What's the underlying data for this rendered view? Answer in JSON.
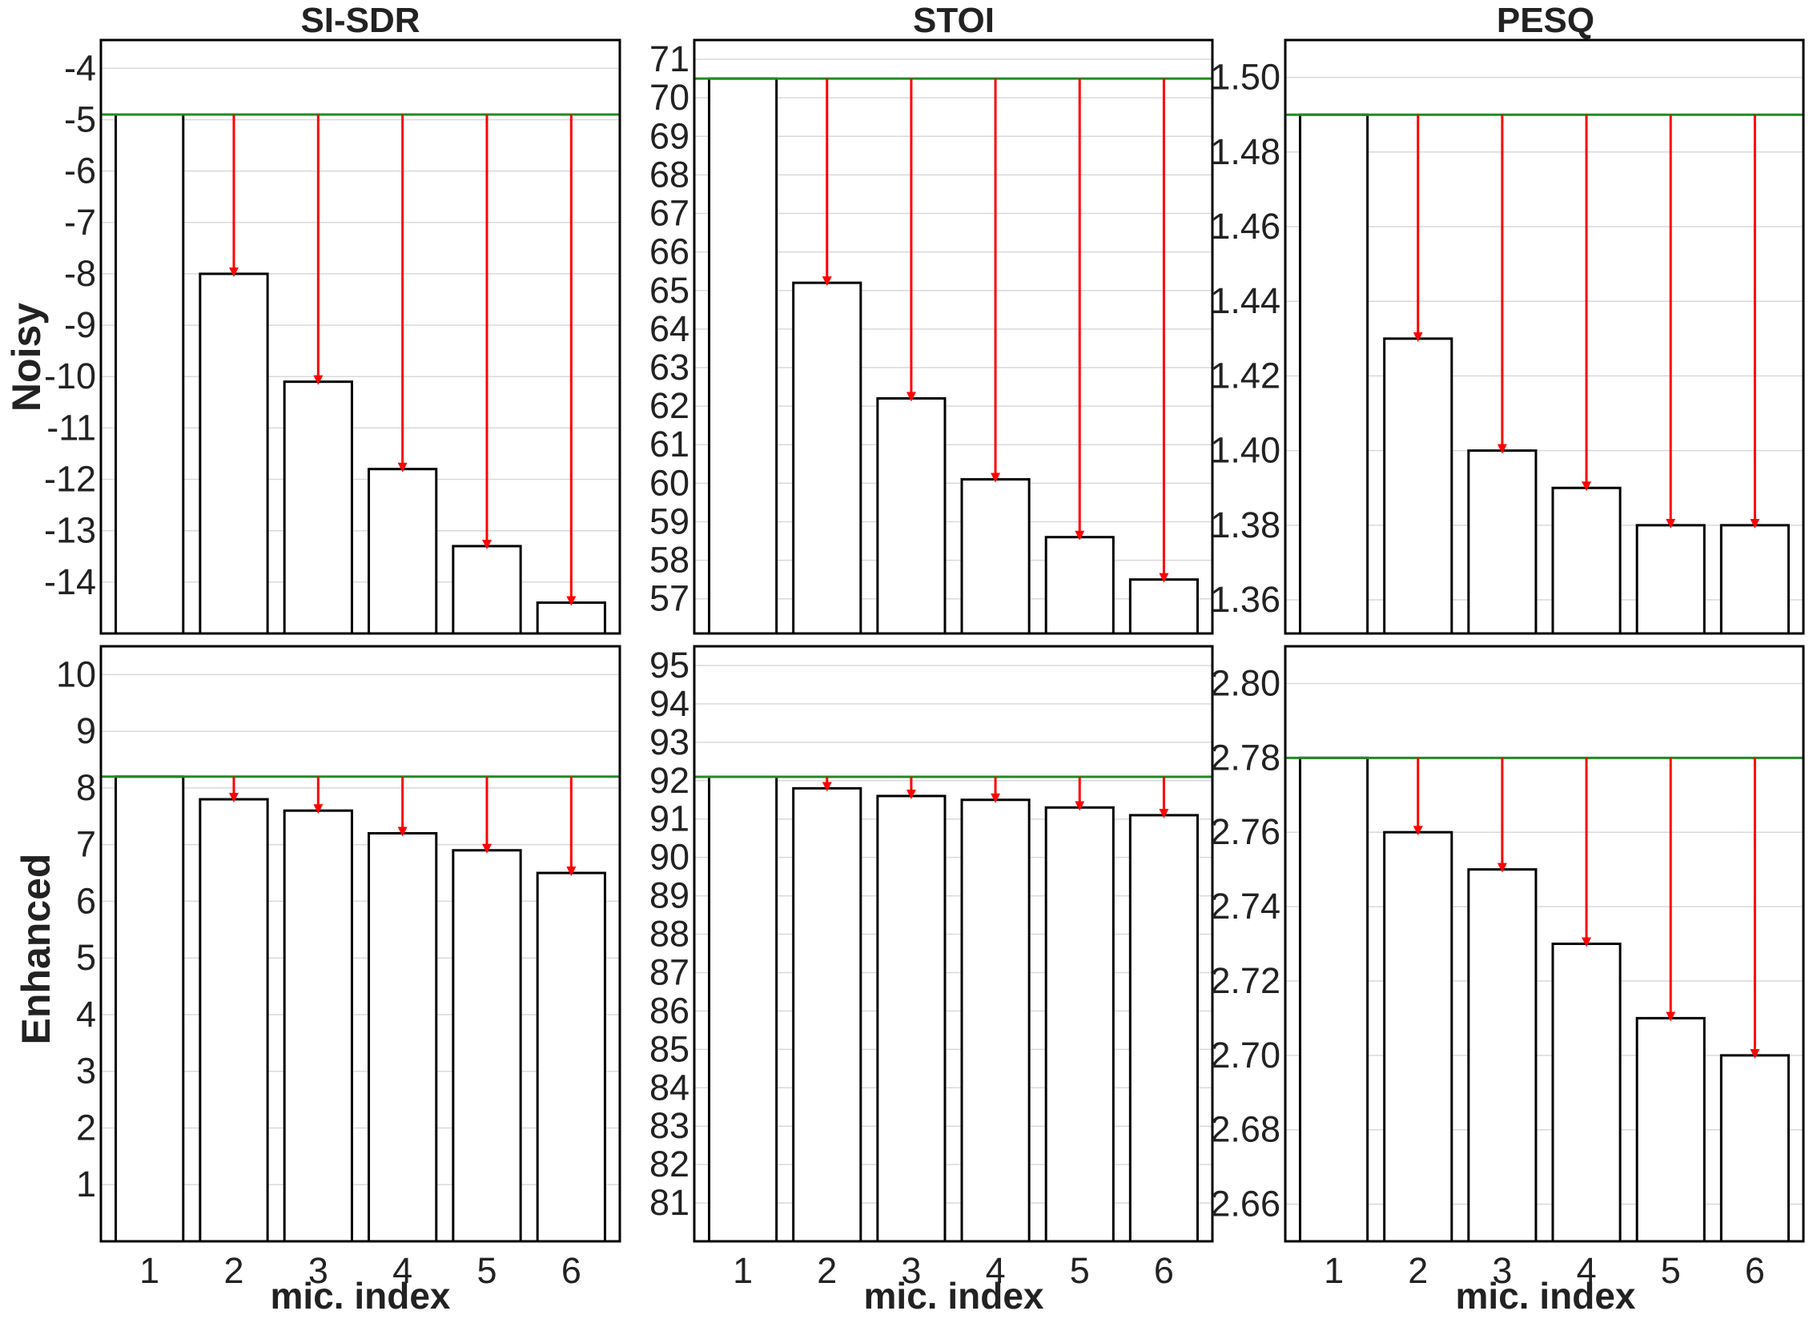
{
  "chart_data": {
    "type": "bar",
    "columns": [
      "SI-SDR",
      "STOI",
      "PESQ"
    ],
    "rows": [
      "Noisy",
      "Enhanced"
    ],
    "xlabel": "mic. index",
    "categories": [
      "1",
      "2",
      "3",
      "4",
      "5",
      "6"
    ],
    "colors": {
      "bar_fill": "#ffffff",
      "bar_edge": "#000000",
      "reference_line": "#228b22",
      "arrow": "#ff0000",
      "grid": "#d9d9d9"
    },
    "grid": true,
    "panels": [
      {
        "row": "Noisy",
        "metric": "SI-SDR",
        "ylim": [
          -15.0,
          -3.45
        ],
        "yticks": [
          -14,
          -13,
          -12,
          -11,
          -10,
          -9,
          -8,
          -7,
          -6,
          -5,
          -4
        ],
        "ytick_labels": [
          "-14",
          "-13",
          "-12",
          "-11",
          "-10",
          "-9",
          "-8",
          "-7",
          "-6",
          "-5",
          "-4"
        ],
        "reference": -4.9,
        "values": [
          -4.9,
          -8.0,
          -10.1,
          -11.8,
          -13.3,
          -14.4
        ]
      },
      {
        "row": "Noisy",
        "metric": "STOI",
        "ylim": [
          56.1,
          71.5
        ],
        "yticks": [
          57,
          58,
          59,
          60,
          61,
          62,
          63,
          64,
          65,
          66,
          67,
          68,
          69,
          70,
          71
        ],
        "ytick_labels": [
          "57",
          "58",
          "59",
          "60",
          "61",
          "62",
          "63",
          "64",
          "65",
          "66",
          "67",
          "68",
          "69",
          "70",
          "71"
        ],
        "reference": 70.5,
        "values": [
          70.5,
          65.2,
          62.2,
          60.1,
          58.6,
          57.5
        ]
      },
      {
        "row": "Noisy",
        "metric": "PESQ",
        "ylim": [
          1.351,
          1.51
        ],
        "yticks": [
          1.36,
          1.38,
          1.4,
          1.42,
          1.44,
          1.46,
          1.48,
          1.5
        ],
        "ytick_labels": [
          "1.36",
          "1.38",
          "1.40",
          "1.42",
          "1.44",
          "1.46",
          "1.48",
          "1.50"
        ],
        "reference": 1.49,
        "values": [
          1.49,
          1.43,
          1.4,
          1.39,
          1.38,
          1.38
        ]
      },
      {
        "row": "Enhanced",
        "metric": "SI-SDR",
        "ylim": [
          0,
          10.5
        ],
        "yticks": [
          1,
          2,
          3,
          4,
          5,
          6,
          7,
          8,
          9,
          10
        ],
        "ytick_labels": [
          "1",
          "2",
          "3",
          "4",
          "5",
          "6",
          "7",
          "8",
          "9",
          "10"
        ],
        "reference": 8.2,
        "values": [
          8.2,
          7.8,
          7.6,
          7.2,
          6.9,
          6.5
        ]
      },
      {
        "row": "Enhanced",
        "metric": "STOI",
        "ylim": [
          80.0,
          95.5
        ],
        "yticks": [
          81,
          82,
          83,
          84,
          85,
          86,
          87,
          88,
          89,
          90,
          91,
          92,
          93,
          94,
          95
        ],
        "ytick_labels": [
          "81",
          "82",
          "83",
          "84",
          "85",
          "86",
          "87",
          "88",
          "89",
          "90",
          "91",
          "92",
          "93",
          "94",
          "95"
        ],
        "reference": 92.1,
        "values": [
          92.1,
          91.8,
          91.6,
          91.5,
          91.3,
          91.1
        ]
      },
      {
        "row": "Enhanced",
        "metric": "PESQ",
        "ylim": [
          2.65,
          2.81
        ],
        "yticks": [
          2.66,
          2.68,
          2.7,
          2.72,
          2.74,
          2.76,
          2.78,
          2.8
        ],
        "ytick_labels": [
          "2.66",
          "2.68",
          "2.70",
          "2.72",
          "2.74",
          "2.76",
          "2.78",
          "2.80"
        ],
        "reference": 2.78,
        "values": [
          2.78,
          2.76,
          2.75,
          2.73,
          2.71,
          2.7
        ]
      }
    ]
  }
}
